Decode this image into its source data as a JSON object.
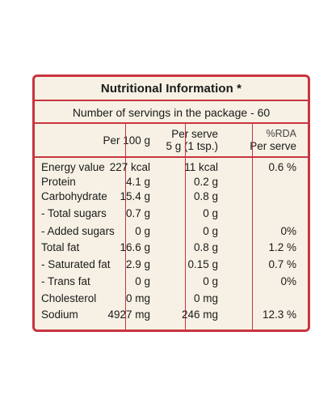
{
  "title": "Nutritional Information *",
  "servings": "Number of servings in the package - 60",
  "columns": {
    "per100": "Per 100 g",
    "serve_line1": "Per serve",
    "serve_line2": "5 g (1 tsp.)",
    "rda_line1": "%RDA",
    "rda_line2": "Per serve"
  },
  "rows": [
    {
      "name": "Energy value",
      "per100": "227 kcal",
      "serve": "11 kcal",
      "rda": "0.6 %"
    },
    {
      "name": "Protein",
      "per100": "4.1 g",
      "serve": "0.2 g",
      "rda": ""
    },
    {
      "name": "Carbohydrate",
      "per100": "15.4 g",
      "serve": "0.8 g",
      "rda": ""
    },
    {
      "name": " - Total sugars",
      "per100": "0.7 g",
      "serve": "0 g",
      "rda": ""
    },
    {
      "name": " - Added sugars",
      "per100": "0 g",
      "serve": "0 g",
      "rda": "0%"
    },
    {
      "name": "Total fat",
      "per100": "16.6 g",
      "serve": "0.8 g",
      "rda": "1.2 %"
    },
    {
      "name": " - Saturated fat",
      "per100": "2.9 g",
      "serve": "0.15 g",
      "rda": "0.7 %"
    },
    {
      "name": " - Trans fat",
      "per100": "0 g",
      "serve": "0 g",
      "rda": "0%"
    },
    {
      "name": "Cholesterol",
      "per100": "0 mg",
      "serve": "0 mg",
      "rda": ""
    },
    {
      "name": "Sodium",
      "per100": "4927 mg",
      "serve": "246 mg",
      "rda": "12.3 %"
    }
  ],
  "colors": {
    "border": "#c9343f",
    "paper": "#f6f1e4",
    "text": "#1a1a1a"
  }
}
